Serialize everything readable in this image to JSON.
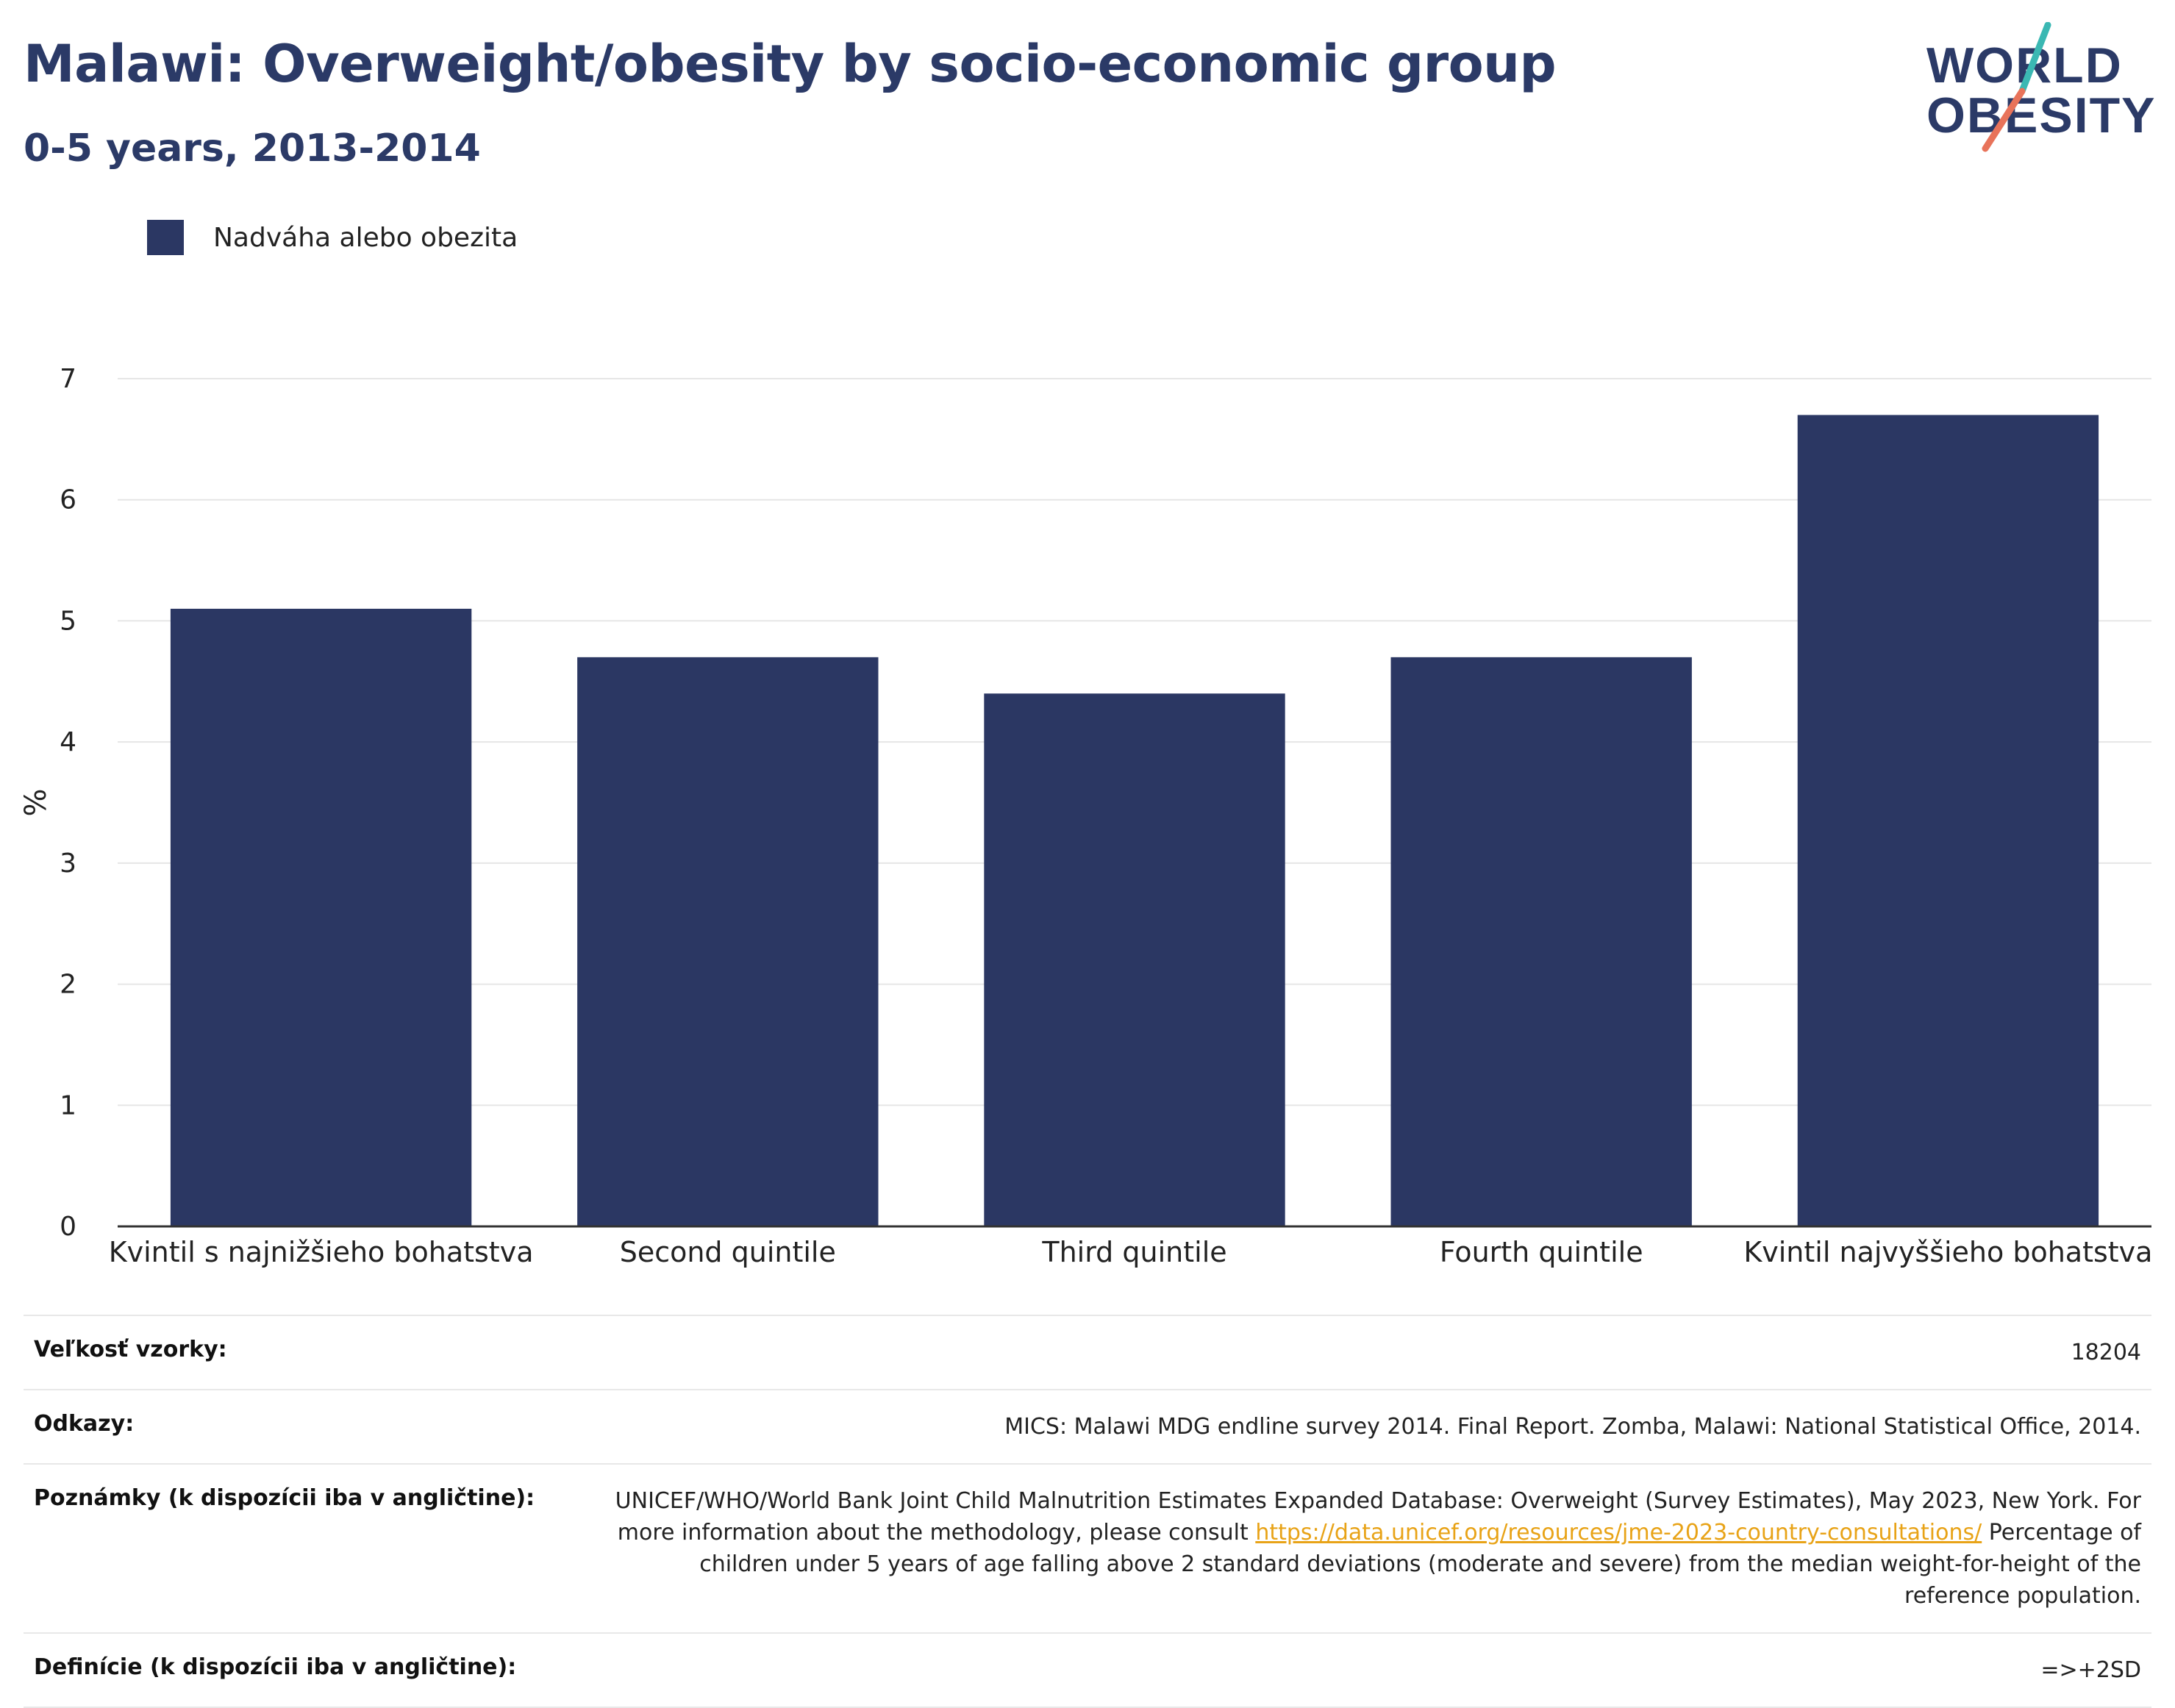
{
  "header": {
    "title": "Malawi: Overweight/obesity by socio-economic group",
    "subtitle": "0-5 years, 2013-2014"
  },
  "logo": {
    "line1": "WORLD",
    "line2": "OBESITY",
    "colors": {
      "text": "#2b3a67",
      "slash_teal": "#3bb8b3",
      "slash_coral": "#e8735a"
    }
  },
  "colors": {
    "bar": "#2b3763",
    "axis": "#333333",
    "grid": "#e6e6e6"
  },
  "chart_data": {
    "type": "bar",
    "title": "Malawi: Overweight/obesity by socio-economic group",
    "subtitle": "0-5 years, 2013-2014",
    "categories": [
      "Kvintil s najnižšieho bohatstva",
      "Second quintile",
      "Third quintile",
      "Fourth quintile",
      "Kvintil najvyššieho bohatstva"
    ],
    "series": [
      {
        "name": "Nadváha alebo obezita",
        "values": [
          5.1,
          4.7,
          4.4,
          4.7,
          6.7
        ]
      }
    ],
    "xlabel": "",
    "ylabel": "%",
    "ylim": [
      0,
      7
    ],
    "yticks": [
      0,
      1,
      2,
      3,
      4,
      5,
      6,
      7
    ],
    "grid": true,
    "legend": "top-left"
  },
  "meta": {
    "sample_size": {
      "key": "Veľkosť vzorky:",
      "value": "18204"
    },
    "references": {
      "key": "Odkazy:",
      "value": "MICS: Malawi MDG endline survey 2014. Final Report. Zomba, Malawi: National Statistical Office, 2014."
    },
    "notes": {
      "key": "Poznámky (k dispozícii iba v angličtine):",
      "text_before": "UNICEF/WHO/World Bank Joint Child Malnutrition Estimates Expanded Database: Overweight (Survey Estimates), May 2023, New York. For more information about the methodology, please consult ",
      "link": "https://data.unicef.org/resources/jme-2023-country-consultations/",
      "text_after": " Percentage of children under 5 years of age falling above 2 standard deviations (moderate and severe) from the median weight-for-height of the reference population."
    },
    "definitions": {
      "key": "Definície (k dispozícii iba v angličtine):",
      "value": "=>+2SD"
    }
  }
}
